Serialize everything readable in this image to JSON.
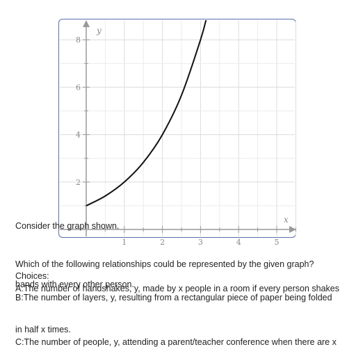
{
  "chart_data": {
    "type": "line",
    "title": "",
    "xlabel": "x",
    "ylabel": "y",
    "xlim": [
      -0.75,
      5.5
    ],
    "ylim": [
      -0.6,
      9.0
    ],
    "x_ticks": [
      1,
      2,
      3,
      4,
      5
    ],
    "y_ticks": [
      2,
      4,
      6,
      8
    ],
    "grid": true,
    "series": [
      {
        "x": [
          0,
          0.5,
          1,
          1.5,
          2,
          2.5,
          3,
          3.17
        ],
        "y": [
          1,
          1.41,
          2,
          2.83,
          4,
          5.66,
          8,
          9.0
        ]
      }
    ]
  },
  "question": {
    "intro": "Consider the graph shown.",
    "prompt": "Which of the following relationships could be represented by the given graph?",
    "choices_label": "Choices:",
    "choice_a": "A:The number of handshakes, y, made by x people in a room if every person shakes",
    "choice_a_overlap": "hands with every other person.",
    "choice_b_line1": "B:The number of layers, y, resulting from a rectangular piece of paper being folded",
    "choice_b_line2": "in half x times.",
    "choice_c": "C:The number of people, y, attending a parent/teacher conference when there are x"
  }
}
